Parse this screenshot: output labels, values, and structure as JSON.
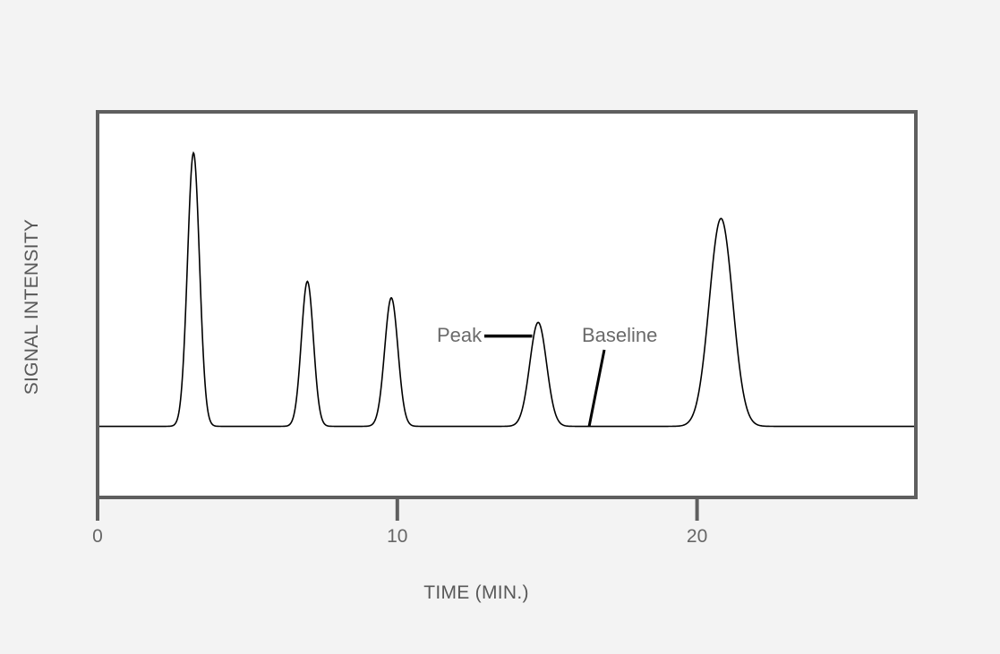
{
  "chart_data": {
    "type": "line",
    "title": "",
    "xlabel": "TIME (MIN.)",
    "ylabel": "SIGNAL INTENSITY",
    "xlim": [
      0,
      27.3
    ],
    "ylim": [
      -0.26,
      1.15
    ],
    "x_ticks": [
      {
        "value": 0,
        "label": "0"
      },
      {
        "value": 10,
        "label": "10"
      },
      {
        "value": 20,
        "label": "20"
      }
    ],
    "grid": false,
    "legend": "none",
    "baseline": 0,
    "series": [
      {
        "peaks": [
          {
            "center": 3.2,
            "height": 1.0,
            "width": 0.2
          },
          {
            "center": 7.0,
            "height": 0.53,
            "width": 0.2
          },
          {
            "center": 9.8,
            "height": 0.47,
            "width": 0.22
          },
          {
            "center": 14.7,
            "height": 0.38,
            "width": 0.28
          },
          {
            "center": 20.8,
            "height": 0.76,
            "width": 0.39
          }
        ]
      }
    ],
    "annotations": [
      {
        "text": "Peak",
        "x": 14.5,
        "y": 0.33
      },
      {
        "text": "Baseline",
        "x": 16.4,
        "y": 0.0
      }
    ],
    "colors": {
      "line": "#000000",
      "frame": "#5f5f5f",
      "plot_background": "#ffffff",
      "page_background": "#f3f3f3"
    }
  }
}
